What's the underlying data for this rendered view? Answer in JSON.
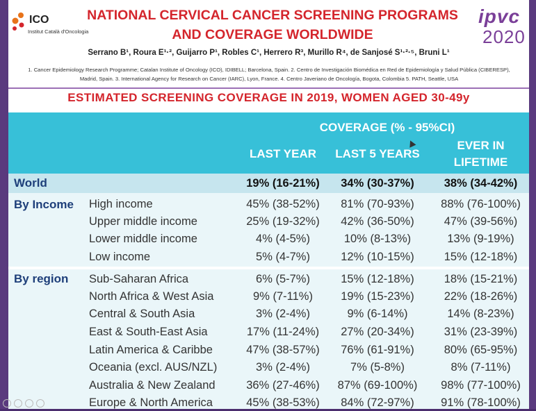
{
  "header": {
    "ico_name": "ICO",
    "ico_sub": "Institut Català d'Oncologia",
    "title_line1": "NATIONAL CERVICAL CANCER SCREENING PROGRAMS",
    "title_line2": "AND COVERAGE WORLDWIDE",
    "ipvc_top": "ipvc",
    "ipvc_year": "2020",
    "authors": "Serrano B¹, Roura E¹·², Guijarro P¹, Robles C¹, Herrero R³, Murillo R⁴, de Sanjosé S¹·²·⁵, Bruni L¹",
    "affiliations_line1": "1. Cancer Epidemiology Research Programme; Catalan Institute of Oncology (ICO), IDIBELL; Barcelona, Spain. 2. Centro de Investigación Biomédica en Red de Epidemiología y Salud Pública (CIBERESP),",
    "affiliations_line2": "Madrid, Spain. 3. International Agency for Research on Cancer (IARC), Lyon, France. 4. Centro Javeriano de Oncología, Bogota, Colombia 5. PATH, Seattle, USA"
  },
  "subtitle": "ESTIMATED SCREENING COVERAGE IN 2019, WOMEN AGED 30-49y",
  "table": {
    "coverage_header": "COVERAGE (% - 95%CI)",
    "col_last_year": "LAST YEAR",
    "col_last_5": "LAST 5 YEARS",
    "col_ever_1": "EVER IN",
    "col_ever_2": "LIFETIME",
    "world": {
      "label": "World",
      "v1": "19% (16-21%)",
      "v2": "34% (30-37%)",
      "v3": "38% (34-42%)"
    },
    "income_label": "By Income",
    "income_rows": [
      {
        "label": "High income",
        "v1": "45% (38-52%)",
        "v2": "81% (70-93%)",
        "v3": "88% (76-100%)"
      },
      {
        "label": "Upper middle income",
        "v1": "25% (19-32%)",
        "v2": "42% (36-50%)",
        "v3": "47% (39-56%)"
      },
      {
        "label": "Lower middle income",
        "v1": "4% (4-5%)",
        "v2": "10% (8-13%)",
        "v3": "13% (9-19%)"
      },
      {
        "label": "Low income",
        "v1": "5% (4-7%)",
        "v2": "12% (10-15%)",
        "v3": "15% (12-18%)"
      }
    ],
    "region_label": "By region",
    "region_rows": [
      {
        "label": "Sub-Saharan Africa",
        "v1": "6% (5-7%)",
        "v2": "15% (12-18%)",
        "v3": "18% (15-21%)"
      },
      {
        "label": "North Africa & West Asia",
        "v1": "9% (7-11%)",
        "v2": "19% (15-23%)",
        "v3": "22% (18-26%)"
      },
      {
        "label": "Central & South Asia",
        "v1": "3% (2-4%)",
        "v2": "9% (6-14%)",
        "v3": "14% (8-23%)"
      },
      {
        "label": "East & South-East Asia",
        "v1": "17% (11-24%)",
        "v2": "27% (20-34%)",
        "v3": "31% (23-39%)"
      },
      {
        "label": "Latin America & Caribbe",
        "v1": "47% (38-57%)",
        "v2": "76% (61-91%)",
        "v3": "80% (65-95%)"
      },
      {
        "label": "Oceania (excl. AUS/NZL)",
        "v1": "3% (2-4%)",
        "v2": "7% (5-8%)",
        "v3": "8% (7-11%)"
      },
      {
        "label": "Australia & New Zealand",
        "v1": "36% (27-46%)",
        "v2": "87% (69-100%)",
        "v3": "98% (77-100%)"
      },
      {
        "label": "Europe & North America",
        "v1": "45% (38-53%)",
        "v2": "84% (72-97%)",
        "v3": "91% (78-100%)"
      }
    ]
  },
  "colors": {
    "title_red": "#d4252c",
    "header_teal": "#37c0d8",
    "group_blue": "#1e3f7a",
    "ipvc_purple": "#7a3f98",
    "frame_purple": "#4b2d6e"
  }
}
